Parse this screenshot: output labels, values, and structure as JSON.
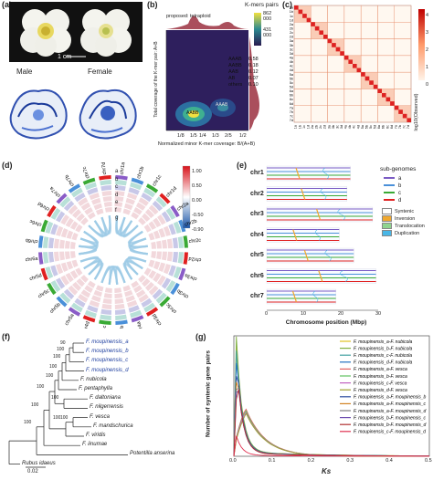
{
  "panel_a": {
    "label": "(a)",
    "scale_bar": "1 cm",
    "male": "Male",
    "female": "Female"
  },
  "panel_b": {
    "label": "(b)",
    "legend_title": "K-mers pairs",
    "legend_max": "862 000",
    "legend_mid": "431 000",
    "proposed": "proposed: tetraploid",
    "ylabel": "Total coverage of the K-mer pair: A+B",
    "xlabel": "Normalized minor K-mer coverage: B/(A+B)",
    "xticks": [
      "1/8",
      "1/5",
      "1/4",
      "1/3",
      "2/5",
      "1/2"
    ],
    "peak_label": "AABB",
    "peak2_label": "AAAB",
    "table": [
      {
        "k": "AAAB",
        "v": "0.58"
      },
      {
        "k": "AABB",
        "v": "0.18"
      },
      {
        "k": "AAB",
        "v": "0.12"
      },
      {
        "k": "AB",
        "v": "0.07"
      },
      {
        "k": "others",
        "v": "0.10"
      }
    ]
  },
  "panel_c": {
    "label": "(c)",
    "scale_title": "log10(Observed)",
    "scale_ticks": [
      "4",
      "3",
      "2",
      "1",
      "0"
    ],
    "chroms": [
      "1a",
      "1b",
      "1c",
      "1d",
      "2a",
      "2b",
      "2c",
      "2d",
      "3a",
      "3b",
      "3c",
      "3d",
      "4a",
      "4b",
      "4c",
      "4d",
      "5a",
      "5b",
      "5c",
      "5d",
      "6a",
      "6b",
      "6c",
      "6d",
      "7a",
      "7b",
      "7c",
      "7d"
    ]
  },
  "panel_d": {
    "label": "(d)",
    "chroms": [
      "chr1a",
      "chr1b",
      "chr1c",
      "chr1d",
      "chr2a",
      "chr2b",
      "chr2c",
      "chr2d",
      "chr3a",
      "chr3b",
      "chr3c",
      "chr3d",
      "chr4a",
      "chr4b",
      "chr4c",
      "chr4d",
      "chr5a",
      "chr5b",
      "chr5c",
      "chr5d",
      "chr6a",
      "chr6b",
      "chr6c",
      "chr6d",
      "chr7a",
      "chr7b",
      "chr7c",
      "chr7d"
    ],
    "tracks": [
      "a",
      "b",
      "c",
      "d",
      "e",
      "f",
      "g"
    ],
    "scale_ticks": [
      "1.00",
      "0.50",
      "0.00",
      "-0.50",
      "-0.90"
    ]
  },
  "panel_e": {
    "label": "(e)",
    "rows": [
      "chr1",
      "chr2",
      "chr3",
      "chr4",
      "chr5",
      "chr6",
      "chr7"
    ],
    "xlabel": "Chromosome position (Mbp)",
    "xticks": [
      "0",
      "10",
      "20",
      "30"
    ],
    "legend_title": "sub-genomes",
    "subgenomes": [
      {
        "name": "a",
        "color": "#7b5cc4"
      },
      {
        "name": "b",
        "color": "#4a90d9"
      },
      {
        "name": "c",
        "color": "#3aaa35"
      },
      {
        "name": "d",
        "color": "#e02020"
      }
    ],
    "events": [
      {
        "name": "Syntenic",
        "color": "#ffffff"
      },
      {
        "name": "Inversion",
        "color": "#f0a830"
      },
      {
        "name": "Translocation",
        "color": "#8fd48f"
      },
      {
        "name": "Duplication",
        "color": "#49b6e6"
      }
    ]
  },
  "panel_f": {
    "label": "(f)",
    "taxa": [
      {
        "name": "F. moupinensis_a",
        "highlight": true
      },
      {
        "name": "F. moupinensis_b",
        "highlight": true
      },
      {
        "name": "F. moupinensis_c",
        "highlight": true
      },
      {
        "name": "F. moupinensis_d",
        "highlight": true
      },
      {
        "name": "F. nubicola",
        "highlight": false
      },
      {
        "name": "F. pentaphylla",
        "highlight": false
      },
      {
        "name": "F. daltoniana",
        "highlight": false
      },
      {
        "name": "F. nilgerrensis",
        "highlight": false
      },
      {
        "name": "F. vesca",
        "highlight": false
      },
      {
        "name": "F. mandschurica",
        "highlight": false
      },
      {
        "name": "F. viridis",
        "highlight": false
      },
      {
        "name": "F. iinumae",
        "highlight": false
      },
      {
        "name": "Potentilla anserina",
        "highlight": false
      },
      {
        "name": "Rubus idaeus",
        "highlight": false
      }
    ],
    "support": [
      "90",
      "100",
      "100",
      "100",
      "100",
      "100",
      "100",
      "100",
      "100",
      "100",
      "100"
    ],
    "scale": "0.02"
  },
  "panel_g": {
    "label": "(g)",
    "ylabel": "Number of syntenic gene pairs",
    "xlabel": "Ks",
    "yticks": [
      "0",
      "500",
      "1000",
      "1500",
      "2000",
      "2500",
      "3000",
      "3500"
    ],
    "xticks": [
      "0.0",
      "0.1",
      "0.2",
      "0.3",
      "0.4",
      "0.5"
    ]
  },
  "chart_data": {
    "type": "line",
    "xlabel": "Ks",
    "ylabel": "Number of syntenic gene pairs",
    "xlim": [
      0,
      0.5
    ],
    "ylim": [
      0,
      3500
    ],
    "series": [
      {
        "name": "F. moupinensis_a-F. nubicola",
        "color": "#e0c020",
        "peak_x": 0.005,
        "peak_y": 3300
      },
      {
        "name": "F. moupinensis_b-F. nubicola",
        "color": "#80b040",
        "peak_x": 0.006,
        "peak_y": 3400
      },
      {
        "name": "F. moupinensis_c-F. nubicola",
        "color": "#40a0a0",
        "peak_x": 0.006,
        "peak_y": 3000
      },
      {
        "name": "F. moupinensis_d-F. nubicola",
        "color": "#2070c0",
        "peak_x": 0.007,
        "peak_y": 2900
      },
      {
        "name": "F. moupinensis_a-F. vesca",
        "color": "#e06060",
        "peak_x": 0.03,
        "peak_y": 1400
      },
      {
        "name": "F. moupinensis_b-F. vesca",
        "color": "#60c060",
        "peak_x": 0.03,
        "peak_y": 1350
      },
      {
        "name": "F. moupinensis_c-F. vesca",
        "color": "#c060c0",
        "peak_x": 0.03,
        "peak_y": 1300
      },
      {
        "name": "F. moupinensis_d-F. vesca",
        "color": "#a0a030",
        "peak_x": 0.031,
        "peak_y": 1250
      },
      {
        "name": "F. moupinensis_a-F. moupinensis_b",
        "color": "#3050a0",
        "peak_x": 0.008,
        "peak_y": 2700
      },
      {
        "name": "F. moupinensis_a-F. moupinensis_c",
        "color": "#d08020",
        "peak_x": 0.008,
        "peak_y": 2500
      },
      {
        "name": "F. moupinensis_a-F. moupinensis_d",
        "color": "#808080",
        "peak_x": 0.009,
        "peak_y": 2400
      },
      {
        "name": "F. moupinensis_b-F. moupinensis_c",
        "color": "#7050b0",
        "peak_x": 0.009,
        "peak_y": 2300
      },
      {
        "name": "F. moupinensis_b-F. moupinensis_d",
        "color": "#b03030",
        "peak_x": 0.01,
        "peak_y": 2200
      },
      {
        "name": "F. moupinensis_c-F. moupinensis_d",
        "color": "#e03050",
        "peak_x": 0.003,
        "peak_y": 700
      }
    ]
  }
}
